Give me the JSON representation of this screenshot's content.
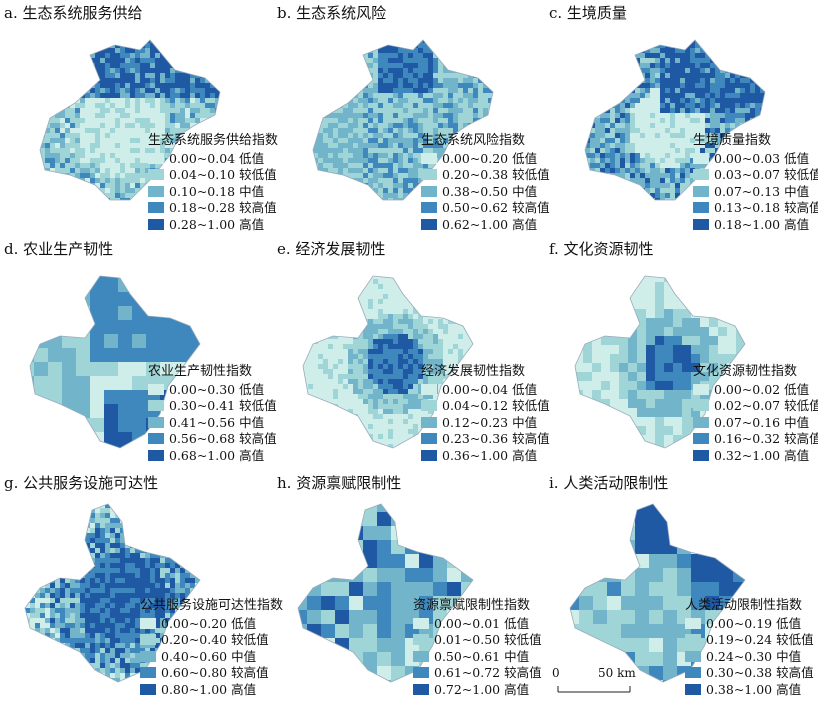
{
  "colors": [
    "#cfeee9",
    "#9fd5d6",
    "#72b5cb",
    "#3f88bd",
    "#1f58a3"
  ],
  "panels": [
    {
      "title": "a. 生态系统服务供给",
      "legend_title": "生态系统服务供给指数",
      "shape": "A",
      "pattern": "service",
      "ranges": [
        "0.00~0.04",
        "0.04~0.10",
        "0.10~0.18",
        "0.18~0.28",
        "0.28~1.00"
      ],
      "classes": [
        "低值",
        "较低值",
        "中值",
        "较高值",
        "高值"
      ]
    },
    {
      "title": "b. 生态系统风险",
      "legend_title": "生态系统风险指数",
      "shape": "A",
      "pattern": "risk",
      "ranges": [
        "0.00~0.20",
        "0.20~0.38",
        "0.38~0.50",
        "0.50~0.62",
        "0.62~1.00"
      ],
      "classes": [
        "低值",
        "较低值",
        "中值",
        "较高值",
        "高值"
      ]
    },
    {
      "title": "c. 生境质量",
      "legend_title": "生境质量指数",
      "shape": "A",
      "pattern": "habitat",
      "ranges": [
        "0.00~0.03",
        "0.03~0.07",
        "0.07~0.13",
        "0.13~0.18",
        "0.18~1.00"
      ],
      "classes": [
        "低值",
        "较低值",
        "中值",
        "较高值",
        "高值"
      ]
    },
    {
      "title": "d. 农业生产韧性",
      "legend_title": "农业生产韧性指数",
      "shape": "B",
      "pattern": "agri",
      "ranges": [
        "0.00~0.30",
        "0.30~0.41",
        "0.41~0.56",
        "0.56~0.68",
        "0.68~1.00"
      ],
      "classes": [
        "低值",
        "较低值",
        "中值",
        "较高值",
        "高值"
      ]
    },
    {
      "title": "e. 经济发展韧性",
      "legend_title": "经济发展韧性指数",
      "shape": "B",
      "pattern": "econ",
      "ranges": [
        "0.00~0.04",
        "0.04~0.12",
        "0.12~0.23",
        "0.23~0.36",
        "0.36~1.00"
      ],
      "classes": [
        "低值",
        "较低值",
        "中值",
        "较高值",
        "高值"
      ]
    },
    {
      "title": "f. 文化资源韧性",
      "legend_title": "文化资源韧性指数",
      "shape": "B",
      "pattern": "culture",
      "ranges": [
        "0.00~0.02",
        "0.02~0.07",
        "0.07~0.16",
        "0.16~0.32",
        "0.32~1.00"
      ],
      "classes": [
        "低值",
        "较低值",
        "中值",
        "较高值",
        "高值"
      ]
    },
    {
      "title": "g. 公共服务设施可达性",
      "legend_title": "公共服务设施可达性指数",
      "shape": "C",
      "pattern": "access",
      "ranges": [
        "0.00~0.20",
        "0.20~0.40",
        "0.40~0.60",
        "0.60~0.80",
        "0.80~1.00"
      ],
      "classes": [
        "低值",
        "较低值",
        "中值",
        "较高值",
        "高值"
      ]
    },
    {
      "title": "h. 资源禀赋限制性",
      "legend_title": "资源禀赋限制性指数",
      "shape": "C",
      "pattern": "resource",
      "ranges": [
        "0.00~0.01",
        "0.01~0.50",
        "0.50~0.61",
        "0.61~0.72",
        "0.72~1.00"
      ],
      "classes": [
        "低值",
        "较低值",
        "中值",
        "较高值",
        "高值"
      ]
    },
    {
      "title": "i. 人类活动限制性",
      "legend_title": "人类活动限制性指数",
      "shape": "C",
      "pattern": "human",
      "ranges": [
        "0.00~0.19",
        "0.19~0.24",
        "0.24~0.30",
        "0.30~0.38",
        "0.38~1.00"
      ],
      "classes": [
        "低值",
        "较低值",
        "中值",
        "较高值",
        "高值"
      ]
    }
  ],
  "scale_bar": {
    "start": "0",
    "end": "50 km"
  }
}
